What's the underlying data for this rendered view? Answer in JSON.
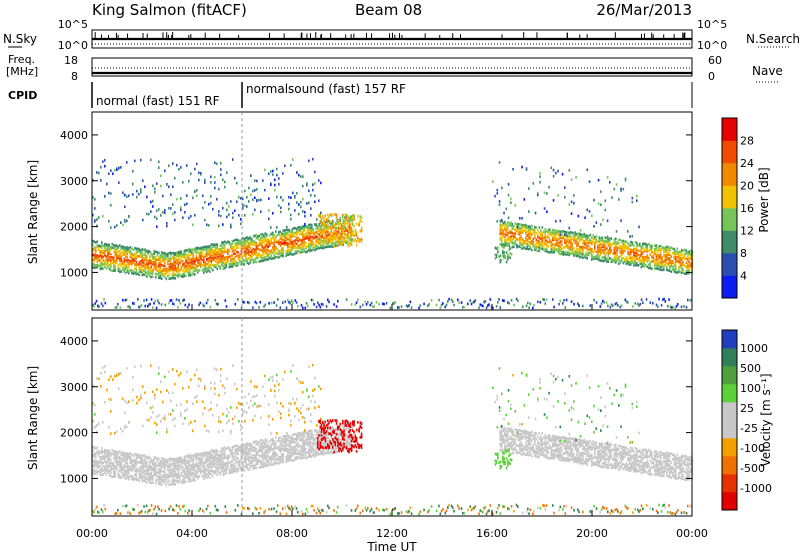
{
  "header": {
    "station": "King Salmon (fitACF)",
    "beam": "Beam 08",
    "date": "26/Mar/2013"
  },
  "strip_panels": {
    "noise": {
      "left_label": "N.Sky",
      "right_label": "N.Search",
      "left_ticks": [
        "10^5",
        "10^0"
      ],
      "right_ticks": [
        "10^5",
        "10^0"
      ]
    },
    "frequency": {
      "left_label_1": "Freq.",
      "left_label_2": "[MHz]",
      "right_label": "Nave",
      "left_ticks": [
        "18",
        "8"
      ],
      "right_ticks": [
        "60",
        "0"
      ]
    },
    "cpid": {
      "label": "CPID",
      "segments": [
        {
          "label": "normal (fast) 151 RF",
          "start_hour": 0,
          "end_hour": 6
        },
        {
          "label": "normalsound (fast) 157 RF",
          "start_hour": 6,
          "end_hour": 24
        }
      ]
    }
  },
  "panels": {
    "power": {
      "ylabel": "Slant Range [km]",
      "yticks": [
        "1000",
        "2000",
        "3000",
        "4000"
      ],
      "colorbar_label": "Power [dB]",
      "colorbar_ticks": [
        "4",
        "8",
        "12",
        "16",
        "20",
        "24",
        "28"
      ],
      "colors": [
        "#0b1df2",
        "#2a4fb0",
        "#3e8c6a",
        "#76c55b",
        "#f2c200",
        "#f28a00",
        "#ef4c00",
        "#e60000"
      ]
    },
    "velocity": {
      "ylabel": "Slant Range [km]",
      "yticks": [
        "1000",
        "2000",
        "3000",
        "4000"
      ],
      "colorbar_label": "Velocity [m s⁻¹]",
      "colorbar_ticks": [
        "1000",
        "500",
        "100",
        "25",
        "-25",
        "-100",
        "-500",
        "-1000"
      ],
      "colors": [
        "#1f3fbf",
        "#2f7f57",
        "#4fa03e",
        "#5cd13a",
        "#c8c8c8",
        "#c8c8c8",
        "#f2a000",
        "#f07000",
        "#e63000",
        "#e00000"
      ]
    }
  },
  "xaxis": {
    "label": "Time UT",
    "ticks": [
      "00:00",
      "04:00",
      "08:00",
      "12:00",
      "16:00",
      "20:00",
      "00:00"
    ]
  },
  "chart_data": {
    "type": "heatmap",
    "title": "King Salmon (fitACF)",
    "x_range_hours": [
      0,
      24
    ],
    "y_range_km": [
      180,
      4500
    ],
    "power_scale_db": [
      0,
      30
    ],
    "velocity_scale_ms": [
      -1000,
      1000
    ],
    "echo_bands": [
      {
        "name": "",
        "hours": [
          0,
          10.5
        ],
        "range_km": [
          1000,
          2100
        ],
        "power_db": [
          14,
          30
        ],
        "velocity_ms": [
          -25,
          25
        ]
      },
      {
        "name": "",
        "hours": [
          16.3,
          24
        ],
        "range_km": [
          1100,
          2100
        ],
        "power_db": [
          12,
          26
        ],
        "velocity_ms": [
          -25,
          25
        ]
      },
      {
        "name": "",
        "hours": [
          9,
          10.8
        ],
        "range_km": [
          1600,
          2300
        ],
        "power_db": [
          14,
          22
        ],
        "velocity_ms": [
          -1000,
          -500
        ]
      },
      {
        "name": "",
        "hours": [
          0,
          9.3
        ],
        "range_km": [
          2000,
          3500
        ],
        "power_db": [
          4,
          10
        ],
        "velocity_ms": [
          -100,
          25
        ]
      }
    ]
  }
}
